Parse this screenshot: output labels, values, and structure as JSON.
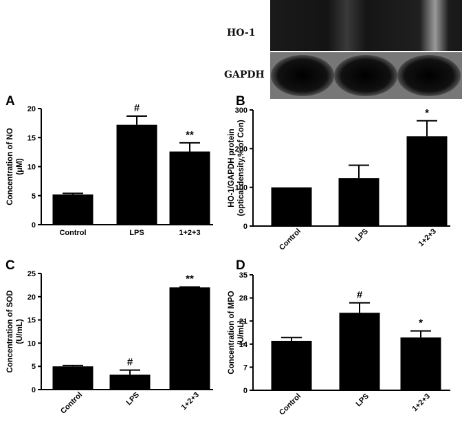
{
  "blot": {
    "bands": [
      "HO-1",
      "GAPDH"
    ]
  },
  "chart_data": [
    {
      "type": "bar",
      "panel": "A",
      "categories": [
        "Control",
        "LPS",
        "1+2+3"
      ],
      "values": [
        5.2,
        17.2,
        12.6
      ],
      "errors": [
        0.2,
        1.5,
        1.5
      ],
      "annotations": [
        "",
        "#",
        "**"
      ],
      "ylabel": [
        "Concentration of NO",
        "(μM)"
      ],
      "ylim": [
        0,
        20
      ],
      "yticks": [
        0,
        5,
        10,
        15,
        20
      ],
      "rotated_categories": false
    },
    {
      "type": "bar",
      "panel": "B",
      "categories": [
        "Control",
        "LPS",
        "1+2+3"
      ],
      "values": [
        100,
        124,
        232
      ],
      "errors": [
        0,
        33,
        40
      ],
      "annotations": [
        "",
        "",
        "*"
      ],
      "ylabel": [
        "HO-1/GAPDH protein",
        "(optical density,% of Con)"
      ],
      "ylim": [
        0,
        300
      ],
      "yticks": [
        0,
        100,
        200,
        300
      ],
      "rotated_categories": true
    },
    {
      "type": "bar",
      "panel": "C",
      "categories": [
        "Control",
        "LPS",
        "1+2+3"
      ],
      "values": [
        5.0,
        3.2,
        22.0
      ],
      "errors": [
        0.2,
        1.0,
        0.1
      ],
      "annotations": [
        "",
        "#",
        "**"
      ],
      "ylabel": [
        "Concentration of SOD",
        "(U/mL)"
      ],
      "ylim": [
        0,
        25
      ],
      "yticks": [
        0,
        5,
        10,
        15,
        20,
        25
      ],
      "rotated_categories": true
    },
    {
      "type": "bar",
      "panel": "D",
      "categories": [
        "Control",
        "LPS",
        "1+2+3"
      ],
      "values": [
        15.0,
        23.5,
        16.0
      ],
      "errors": [
        1.0,
        3.0,
        2.0
      ],
      "annotations": [
        "",
        "#",
        "*"
      ],
      "ylabel": [
        "Concentration of MPO",
        "(U/mL)"
      ],
      "ylim": [
        0,
        35
      ],
      "yticks": [
        0,
        7,
        14,
        21,
        28,
        35
      ],
      "rotated_categories": true
    }
  ]
}
